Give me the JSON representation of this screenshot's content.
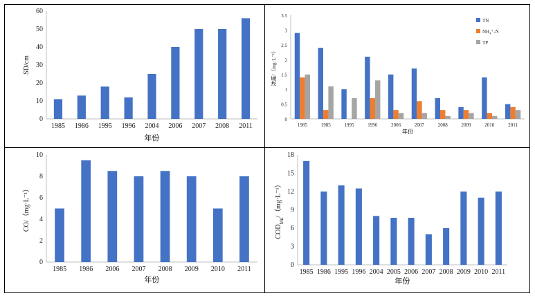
{
  "chart_data": [
    {
      "type": "bar",
      "categories": [
        "1985",
        "1986",
        "1995",
        "1996",
        "2004",
        "2006",
        "2007",
        "2008",
        "2011"
      ],
      "values": [
        11,
        13,
        18,
        12,
        25,
        40,
        50,
        50,
        56
      ],
      "ylim": [
        0,
        60
      ],
      "yticks": [
        "0",
        "10",
        "20",
        "30",
        "40",
        "50",
        "60"
      ],
      "xlabel": "年份",
      "ylabel": "SD/cm",
      "color": "#4472C4",
      "grid": false
    },
    {
      "type": "bar",
      "categories": [
        "1985",
        "1985",
        "1995",
        "1996",
        "2006",
        "2007",
        "2008",
        "2009",
        "2010",
        "2011"
      ],
      "series": [
        {
          "name": "TN",
          "values": [
            2.9,
            2.4,
            1.0,
            2.1,
            1.5,
            1.7,
            0.7,
            0.4,
            1.4,
            0.5
          ],
          "color": "#4472C4"
        },
        {
          "name": "NH₄⁺-N",
          "values": [
            1.4,
            0.3,
            0,
            0.7,
            0.3,
            0.6,
            0.3,
            0.3,
            0.2,
            0.4
          ],
          "color": "#ED7D31"
        },
        {
          "name": "TP",
          "values": [
            1.5,
            1.1,
            0.7,
            1.3,
            0.2,
            0.2,
            0.1,
            0.2,
            0.1,
            0.3
          ],
          "color": "#A5A5A5"
        }
      ],
      "ylim": [
        0,
        3.5
      ],
      "yticks": [
        "0",
        "0.5",
        "1",
        "1.5",
        "2",
        "2.5",
        "3",
        "3.5"
      ],
      "xlabel": "年份",
      "ylabel": "浓度/（mg·L⁻¹）",
      "legend": "top-right",
      "grid": false
    },
    {
      "type": "bar",
      "categories": [
        "1985",
        "1986",
        "2006",
        "2007",
        "2008",
        "2009",
        "2010",
        "2011"
      ],
      "values": [
        5,
        9.5,
        8.5,
        8,
        8.5,
        8,
        5,
        8
      ],
      "ylim": [
        0,
        10
      ],
      "yticks": [
        "0",
        "2",
        "4",
        "6",
        "8",
        "10"
      ],
      "xlabel": "年份",
      "ylabel": "CO/（mg·L⁻¹）",
      "color": "#4472C4",
      "grid": false
    },
    {
      "type": "bar",
      "categories": [
        "1985",
        "1986",
        "1995",
        "1996",
        "2004",
        "2005",
        "2006",
        "2007",
        "2008",
        "2009",
        "2010",
        "2011"
      ],
      "values": [
        17,
        12,
        13,
        12.5,
        8,
        7.7,
        7.7,
        5,
        6,
        12,
        11,
        12
      ],
      "ylim": [
        0,
        18
      ],
      "yticks": [
        "0",
        "3",
        "6",
        "9",
        "12",
        "15",
        "18"
      ],
      "xlabel": "年份",
      "ylabel": "COD_Mn/（mg·L⁻¹）",
      "color": "#4472C4",
      "grid": false
    }
  ]
}
